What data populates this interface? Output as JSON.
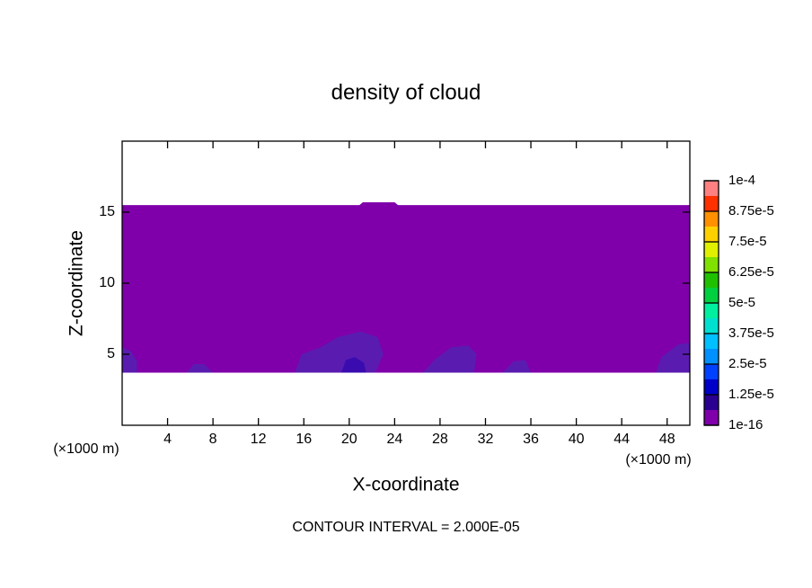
{
  "chart_data": {
    "type": "contour",
    "title": "density of cloud",
    "x_label": "X-coordinate",
    "y_label": "Z-coordinate",
    "x_unit": "(×1000 m)",
    "y_unit": "(×1000 m)",
    "footer": "CONTOUR INTERVAL = 2.000E-05",
    "xlim": [
      0,
      50
    ],
    "ylim": [
      0,
      20
    ],
    "xticks": [
      4,
      8,
      12,
      16,
      20,
      24,
      28,
      32,
      36,
      40,
      44,
      48
    ],
    "yticks": [
      5,
      10,
      15
    ],
    "regions": [
      {
        "color": "#7f00aa",
        "x": [
          0,
          50,
          50,
          24.3,
          24,
          21.2,
          20.9,
          0
        ],
        "z": [
          3.7,
          3.7,
          15.5,
          15.5,
          15.7,
          15.7,
          15.5,
          15.5
        ]
      },
      {
        "color": "#5a1cb0",
        "x": [
          0,
          0,
          0.8,
          1.3,
          1.3
        ],
        "z": [
          3.7,
          5.5,
          5.2,
          4.5,
          3.7
        ]
      },
      {
        "color": "#5a1cb0",
        "x": [
          5.7,
          6.3,
          7.2,
          8
        ],
        "z": [
          3.7,
          4.3,
          4.3,
          3.7
        ]
      },
      {
        "color": "#5a1cb0",
        "x": [
          15.2,
          15.8,
          17.5,
          19,
          21,
          22.5,
          23,
          22.3
        ],
        "z": [
          3.7,
          5,
          5.5,
          6.2,
          6.6,
          6.2,
          5,
          3.7
        ]
      },
      {
        "color": "#3a0cb0",
        "x": [
          19.3,
          19.7,
          20.5,
          21.3,
          21.5
        ],
        "z": [
          3.7,
          4.6,
          4.8,
          4.4,
          3.7
        ]
      },
      {
        "color": "#5a1cb0",
        "x": [
          26.5,
          27.5,
          29,
          30.5,
          31.2,
          31
        ],
        "z": [
          3.7,
          4.6,
          5.5,
          5.6,
          5,
          3.7
        ]
      },
      {
        "color": "#5a1cb0",
        "x": [
          33.5,
          34.5,
          35.5,
          36
        ],
        "z": [
          3.7,
          4.5,
          4.6,
          3.7
        ]
      },
      {
        "color": "#5a1cb0",
        "x": [
          47,
          47.5,
          49,
          50,
          50
        ],
        "z": [
          3.7,
          4.8,
          5.7,
          5.8,
          3.7
        ]
      }
    ],
    "colorbar_ticks": [
      {
        "value": 1e-16,
        "label": "1e-16"
      },
      {
        "value": 1.25e-05,
        "label": "1.25e-5"
      },
      {
        "value": 2.5e-05,
        "label": "2.5e-5"
      },
      {
        "value": 3.75e-05,
        "label": "3.75e-5"
      },
      {
        "value": 5e-05,
        "label": "5e-5"
      },
      {
        "value": 6.25e-05,
        "label": "6.25e-5"
      },
      {
        "value": 7.5e-05,
        "label": "7.5e-5"
      },
      {
        "value": 8.75e-05,
        "label": "8.75e-5"
      },
      {
        "value": 0.0001,
        "label": "1e-4"
      }
    ],
    "colorbar_colors": [
      "#7f00aa",
      "#2a0090",
      "#0000c8",
      "#0040ff",
      "#0090ff",
      "#00c0ff",
      "#00e0d0",
      "#00f0a0",
      "#00d040",
      "#20c000",
      "#80e000",
      "#e0f000",
      "#ffd000",
      "#ff9000",
      "#ff3000",
      "#ff8080"
    ]
  }
}
